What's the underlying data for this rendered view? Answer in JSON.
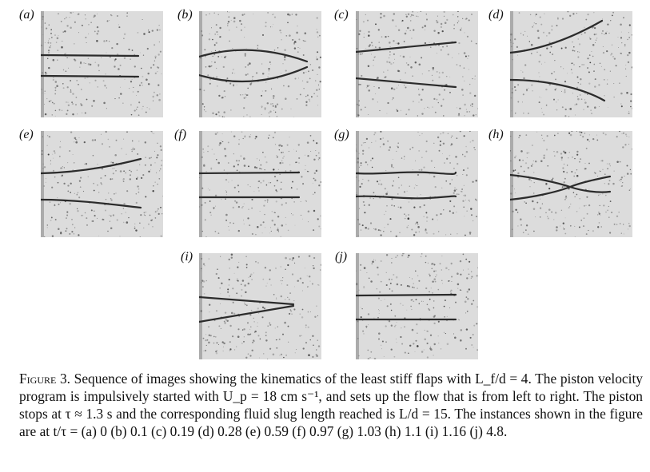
{
  "panels": [
    {
      "label": "(a)",
      "shape": "parallel-short"
    },
    {
      "label": "(b)",
      "shape": "lens"
    },
    {
      "label": "(c)",
      "shape": "converge-slight"
    },
    {
      "label": "(d)",
      "shape": "diverge"
    },
    {
      "label": "(e)",
      "shape": "diverge-soft"
    },
    {
      "label": "(f)",
      "shape": "parallel"
    },
    {
      "label": "(g)",
      "shape": "wavy"
    },
    {
      "label": "(h)",
      "shape": "cross"
    },
    {
      "label": "(i)",
      "shape": "converge"
    },
    {
      "label": "(j)",
      "shape": "parallel"
    }
  ],
  "caption": {
    "figure_label": "Figure 3.",
    "text": "Sequence of images showing the kinematics of the least stiff flaps with L_f/d = 4. The piston velocity program is impulsively started with U_p = 18 cm s⁻¹, and sets up the flow that is from left to right. The piston stops at τ ≈ 1.3 s and the corresponding fluid slug length reached is L/d = 15. The instances shown in the figure are at t/τ = (a) 0 (b) 0.1 (c) 0.19 (d) 0.28 (e) 0.59 (f) 0.97 (g) 1.03 (h) 1.1 (i) 1.16 (j) 4.8."
  }
}
